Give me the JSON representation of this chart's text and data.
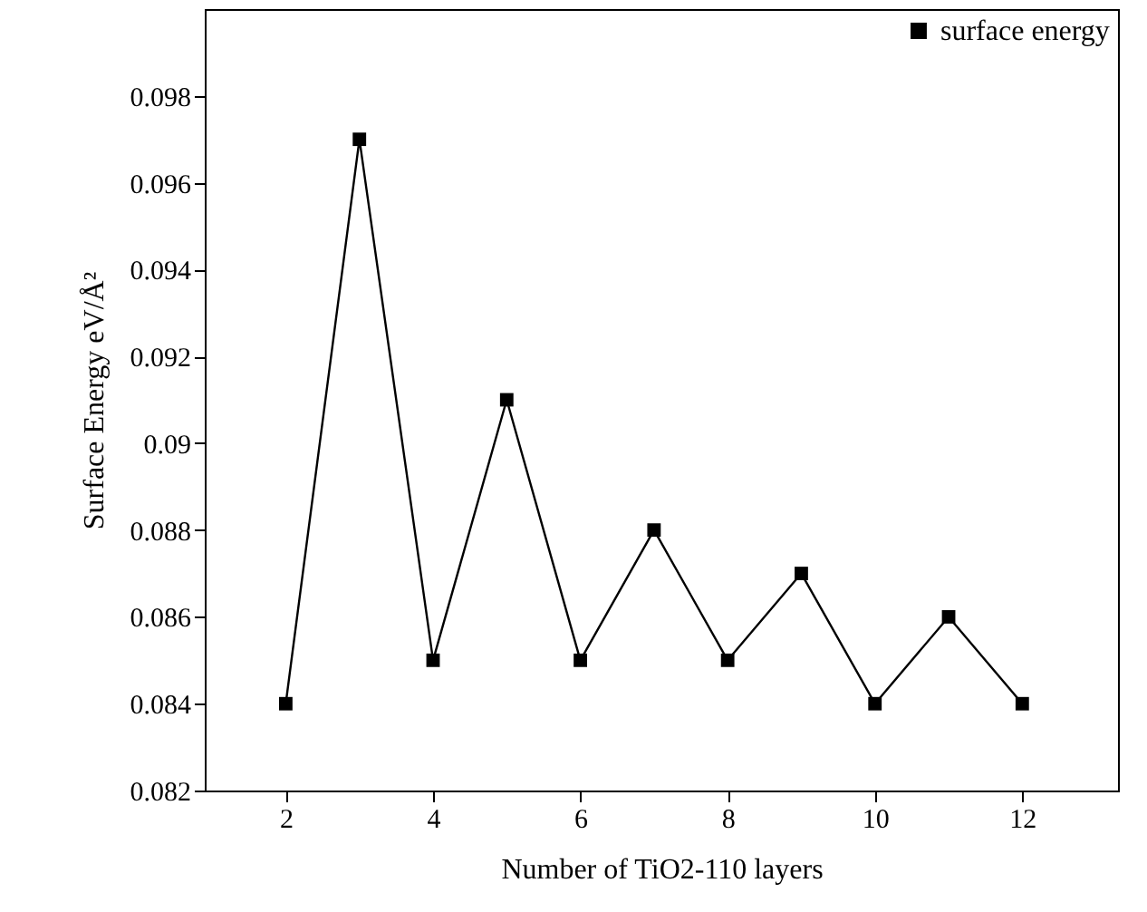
{
  "chart_data": {
    "type": "line",
    "xlabel": "Number of TiO2-110 layers",
    "ylabel": "Surface Energy eV/Å²",
    "x": [
      2,
      3,
      4,
      5,
      6,
      7,
      8,
      9,
      10,
      11,
      12
    ],
    "series": [
      {
        "name": "surface energy",
        "color": "#000000",
        "values": [
          0.084,
          0.097,
          0.085,
          0.091,
          0.085,
          0.088,
          0.085,
          0.087,
          0.084,
          0.086,
          0.084
        ]
      }
    ],
    "xlim": [
      0.9,
      13.3
    ],
    "xticks": [
      2,
      4,
      6,
      8,
      10,
      12
    ],
    "ylim": [
      0.082,
      0.1
    ],
    "yticks": [
      0.082,
      0.084,
      0.086,
      0.088,
      0.09,
      0.092,
      0.094,
      0.096,
      0.098
    ],
    "grid": false,
    "legend": "top right",
    "marker": "square",
    "line_style": "solid"
  }
}
